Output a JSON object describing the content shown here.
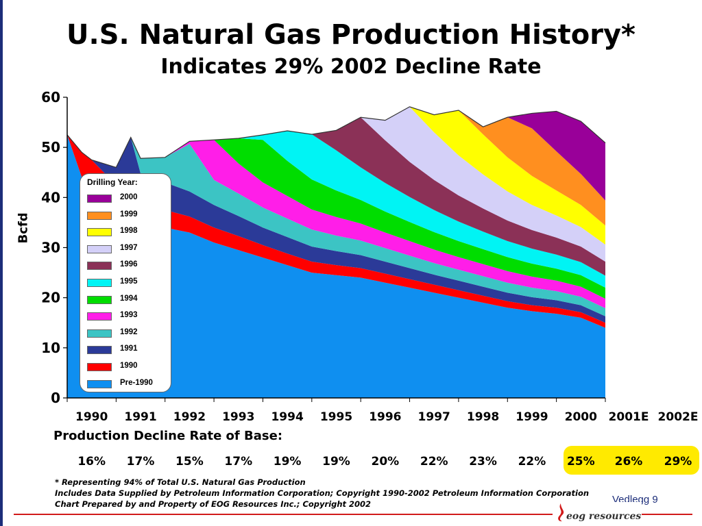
{
  "slide": {
    "title": "U.S. Natural Gas Production History*",
    "subtitle": "Indicates 29% 2002 Decline Rate",
    "decline_heading": "Production Decline Rate of Base:",
    "footnotes": [
      "* Representing 94% of Total U.S. Natural Gas Production",
      "Includes Data Supplied by Petroleum Information Corporation; Copyright 1990-2002 Petroleum Information Corporation",
      "Chart Prepared by and Property of EOG Resources Inc.; Copyright 2002"
    ],
    "page_label": "Vedlegg 9",
    "logo_text": "eog resources",
    "accent_color": "#d11a1a",
    "highlight_color": "#ffea00"
  },
  "decline_rates": [
    {
      "year": "1990",
      "rate": "16%"
    },
    {
      "year": "1991",
      "rate": "17%"
    },
    {
      "year": "1992",
      "rate": "15%"
    },
    {
      "year": "1993",
      "rate": "17%"
    },
    {
      "year": "1994",
      "rate": "19%"
    },
    {
      "year": "1995",
      "rate": "19%"
    },
    {
      "year": "1996",
      "rate": "20%"
    },
    {
      "year": "1997",
      "rate": "22%"
    },
    {
      "year": "1998",
      "rate": "23%"
    },
    {
      "year": "1999",
      "rate": "22%"
    },
    {
      "year": "2000",
      "rate": "25%"
    },
    {
      "year": "2001E",
      "rate": "26%"
    },
    {
      "year": "2002E",
      "rate": "29%"
    }
  ],
  "chart_data": {
    "type": "area",
    "stacked": true,
    "title": "U.S. Natural Gas Production History*",
    "xlabel": "",
    "ylabel": "Bcfd",
    "ylim": [
      0,
      60
    ],
    "yticks": [
      0,
      10,
      20,
      30,
      40,
      50,
      60
    ],
    "xlim": [
      1990,
      2001
    ],
    "x_tick_labels": [
      "1990",
      "1991",
      "1992",
      "1993",
      "1994",
      "1995",
      "1996",
      "1997",
      "1998",
      "1999",
      "2000"
    ],
    "legend_title": "Drilling Year:",
    "legend_position": "left-inside",
    "x": [
      1990.0,
      1990.3,
      1990.5,
      1991.0,
      1991.3,
      1991.5,
      1992.0,
      1992.5,
      1993.0,
      1993.5,
      1994.0,
      1994.5,
      1995.0,
      1995.5,
      1996.0,
      1996.5,
      1997.0,
      1997.5,
      1998.0,
      1998.5,
      1999.0,
      1999.5,
      2000.0,
      2000.5,
      2001.0
    ],
    "series": [
      {
        "name": "Pre-1990",
        "color": "#0f8ff0",
        "values": [
          52.5,
          44,
          40,
          38,
          36,
          35,
          34,
          33,
          31,
          29.5,
          28,
          26.5,
          25,
          24.5,
          24,
          23,
          22,
          21,
          20,
          19,
          18,
          17.3,
          16.8,
          16,
          14
        ]
      },
      {
        "name": "1990",
        "color": "#ff0000",
        "values": [
          0,
          5,
          7.5,
          4.5,
          4,
          3.8,
          3.5,
          3.2,
          3,
          2.8,
          2.5,
          2.3,
          2.2,
          2.0,
          1.9,
          1.8,
          1.7,
          1.6,
          1.5,
          1.4,
          1.3,
          1.2,
          1.2,
          1.1,
          1.0
        ]
      },
      {
        "name": "1991",
        "color": "#2b3a98",
        "values": [
          0,
          0,
          0,
          3.5,
          12,
          6,
          5.5,
          5,
          4.5,
          4,
          3.5,
          3.3,
          3.0,
          2.8,
          2.6,
          2.4,
          2.2,
          2.0,
          1.9,
          1.8,
          1.7,
          1.6,
          1.5,
          1.4,
          1.3
        ]
      },
      {
        "name": "1992",
        "color": "#3cc4c4",
        "values": [
          0,
          0,
          0,
          0,
          0,
          3,
          5,
          9.5,
          5,
          4.5,
          4,
          3.7,
          3.4,
          3.1,
          2.9,
          2.7,
          2.5,
          2.3,
          2.2,
          2.1,
          2.0,
          1.9,
          1.8,
          1.7,
          1.6
        ]
      },
      {
        "name": "1993",
        "color": "#ff1ee8",
        "values": [
          0,
          0,
          0,
          0,
          0,
          0,
          0,
          0.5,
          8,
          6,
          5,
          4.5,
          4,
          3.7,
          3.4,
          3.1,
          2.9,
          2.7,
          2.5,
          2.4,
          2.3,
          2.2,
          2.1,
          2.0,
          1.9
        ]
      },
      {
        "name": "1994",
        "color": "#00dd00",
        "values": [
          0,
          0,
          0,
          0,
          0,
          0,
          0,
          0,
          0,
          5,
          8.5,
          7,
          6,
          5.3,
          4.7,
          4.2,
          3.8,
          3.5,
          3.2,
          3.0,
          2.8,
          2.6,
          2.4,
          2.3,
          2.2
        ]
      },
      {
        "name": "1995",
        "color": "#00f4f4",
        "values": [
          0,
          0,
          0,
          0,
          0,
          0,
          0,
          0,
          0,
          0,
          1,
          6,
          9,
          8,
          6.5,
          5.7,
          5.0,
          4.4,
          3.9,
          3.5,
          3.2,
          3.0,
          2.8,
          2.6,
          2.4
        ]
      },
      {
        "name": "1996",
        "color": "#8b3157",
        "values": [
          0,
          0,
          0,
          0,
          0,
          0,
          0,
          0,
          0,
          0,
          0,
          0,
          0,
          4,
          10,
          8.5,
          7,
          6,
          5.2,
          4.6,
          4.1,
          3.7,
          3.4,
          3.1,
          2.8
        ]
      },
      {
        "name": "1997",
        "color": "#d4d0f8",
        "values": [
          0,
          0,
          0,
          0,
          0,
          0,
          0,
          0,
          0,
          0,
          0,
          0,
          0,
          0,
          0,
          4,
          11,
          9.5,
          8,
          6.8,
          5.8,
          5.0,
          4.4,
          3.9,
          3.4
        ]
      },
      {
        "name": "1998",
        "color": "#ffff00",
        "values": [
          0,
          0,
          0,
          0,
          0,
          0,
          0,
          0,
          0,
          0,
          0,
          0,
          0,
          0,
          0,
          0,
          0,
          3.5,
          9,
          8,
          6.8,
          5.8,
          5.0,
          4.4,
          3.8
        ]
      },
      {
        "name": "1999",
        "color": "#ff8f1f",
        "values": [
          0,
          0,
          0,
          0,
          0,
          0,
          0,
          0,
          0,
          0,
          0,
          0,
          0,
          0,
          0,
          0,
          0,
          0,
          0,
          1.5,
          8,
          9.5,
          7.8,
          6.2,
          5.0
        ]
      },
      {
        "name": "2000",
        "color": "#990099",
        "values": [
          0,
          0,
          0,
          0,
          0,
          0,
          0,
          0,
          0,
          0,
          0,
          0,
          0,
          0,
          0,
          0,
          0,
          0,
          0,
          0,
          0,
          3,
          8,
          10.5,
          11.5
        ]
      }
    ]
  }
}
